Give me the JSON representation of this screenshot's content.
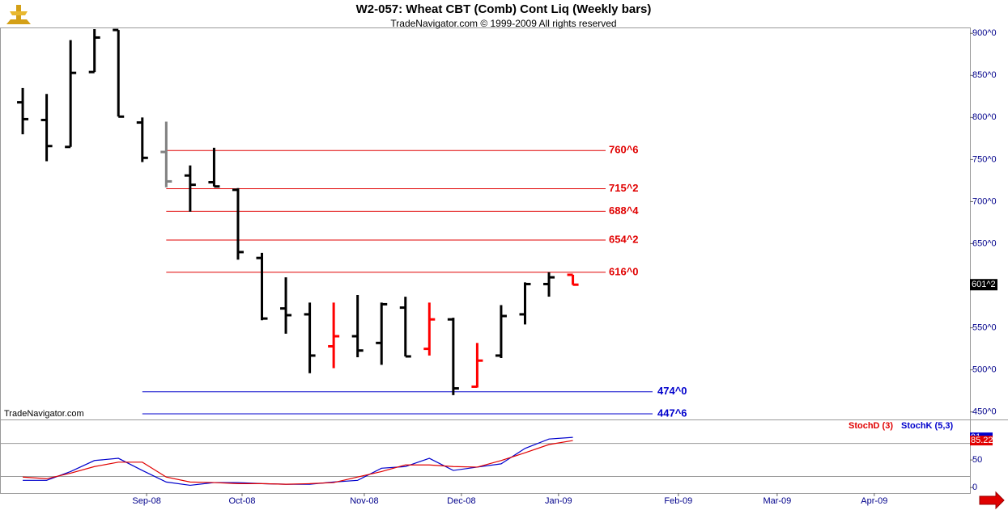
{
  "chart_data": {
    "type": "ohlc",
    "title": "W2-057:  Wheat CBT (Comb) Cont Liq  (Weekly bars)",
    "subtitle": "TradeNavigator.com © 1999-2009 All rights reserved",
    "watermark": "TradeNavigator.com",
    "categories": [
      null,
      null,
      null,
      null,
      null,
      null,
      null,
      null,
      null,
      null,
      null,
      null,
      null,
      null,
      null,
      null,
      null,
      null,
      null,
      null,
      null,
      null,
      null,
      null
    ],
    "open": [
      818,
      797,
      765,
      854,
      904,
      794,
      759,
      731,
      723,
      714,
      633,
      573,
      566,
      528,
      540,
      532,
      574,
      525,
      560,
      480,
      517,
      566,
      602,
      613
    ],
    "high": [
      835,
      828,
      892,
      905,
      904,
      800,
      795,
      743,
      764,
      716,
      639,
      610,
      580,
      580,
      589,
      580,
      587,
      580,
      562,
      532,
      577,
      604,
      616,
      613
    ],
    "low": [
      780,
      748,
      765,
      854,
      801,
      747,
      717,
      688,
      718,
      631,
      559,
      543,
      496,
      502,
      515,
      506,
      516,
      517,
      470,
      479,
      514,
      554,
      587,
      601
    ],
    "close": [
      798,
      766,
      853,
      895,
      801,
      752,
      724,
      720,
      718,
      640,
      561,
      565,
      517,
      540,
      523,
      578,
      516,
      560,
      478,
      511,
      564,
      602,
      610,
      601.25
    ],
    "bar_colors": [
      "#000000",
      "#000000",
      "#000000",
      "#000000",
      "#000000",
      "#000000",
      "#808080",
      "#000000",
      "#000000",
      "#000000",
      "#000000",
      "#000000",
      "#000000",
      "#ff0000",
      "#000000",
      "#000000",
      "#000000",
      "#ff0000",
      "#000000",
      "#ff0000",
      "#000000",
      "#000000",
      "#000000",
      "#ff0000"
    ],
    "last_price_label": {
      "value": 601.25,
      "label": "601^2"
    },
    "xlim": [
      -0.95,
      39.6
    ],
    "xticks": [
      {
        "value": 5.18,
        "label": "Sep-08"
      },
      {
        "value": 9.17,
        "label": "Oct-08"
      },
      {
        "value": 14.28,
        "label": "Nov-08"
      },
      {
        "value": 18.34,
        "label": "Dec-08"
      },
      {
        "value": 22.4,
        "label": "Jan-09"
      },
      {
        "value": 27.41,
        "label": "Feb-09"
      },
      {
        "value": 31.54,
        "label": "Mar-09"
      },
      {
        "value": 35.6,
        "label": "Apr-09"
      }
    ],
    "ylim": [
      442,
      906
    ],
    "yticks": [
      {
        "value": 450,
        "label": "450^0"
      },
      {
        "value": 500,
        "label": "500^0"
      },
      {
        "value": 550,
        "label": "550^0"
      },
      {
        "value": 600,
        "label": "600^0"
      },
      {
        "value": 650,
        "label": "650^0"
      },
      {
        "value": 700,
        "label": "700^0"
      },
      {
        "value": 750,
        "label": "750^0"
      },
      {
        "value": 800,
        "label": "800^0"
      },
      {
        "value": 850,
        "label": "850^0"
      },
      {
        "value": 900,
        "label": "900^0"
      }
    ],
    "resistance": {
      "color": "#e00000",
      "levels": [
        {
          "value": 760.75,
          "label": "760^6"
        },
        {
          "value": 715.25,
          "label": "715^2"
        },
        {
          "value": 688.5,
          "label": "688^4"
        },
        {
          "value": 654.25,
          "label": "654^2"
        },
        {
          "value": 616,
          "label": "616^0"
        }
      ]
    },
    "support": {
      "color": "#0000cc",
      "levels": [
        {
          "value": 474,
          "label": "474^0"
        },
        {
          "value": 447.75,
          "label": "447^6"
        }
      ]
    },
    "indicator": {
      "ylim": [
        -10,
        122
      ],
      "yticks": [
        0,
        50
      ],
      "ref_lines": [
        20,
        80
      ],
      "series": [
        {
          "name": "StochD (3)",
          "color": "#e00000",
          "values": [
            19,
            16,
            26,
            38,
            46,
            46,
            19,
            10,
            9,
            7,
            7,
            6,
            7,
            9,
            19,
            29,
            41,
            41,
            38,
            37,
            49,
            63,
            78,
            85.22
          ]
        },
        {
          "name": "StochK (5,3)",
          "color": "#0000cc",
          "values": [
            13,
            13,
            29,
            49,
            53,
            31,
            10,
            4,
            9,
            9,
            7,
            6,
            6,
            10,
            13,
            35,
            38,
            53,
            31,
            37,
            43,
            71,
            88,
            91
          ]
        }
      ]
    }
  }
}
